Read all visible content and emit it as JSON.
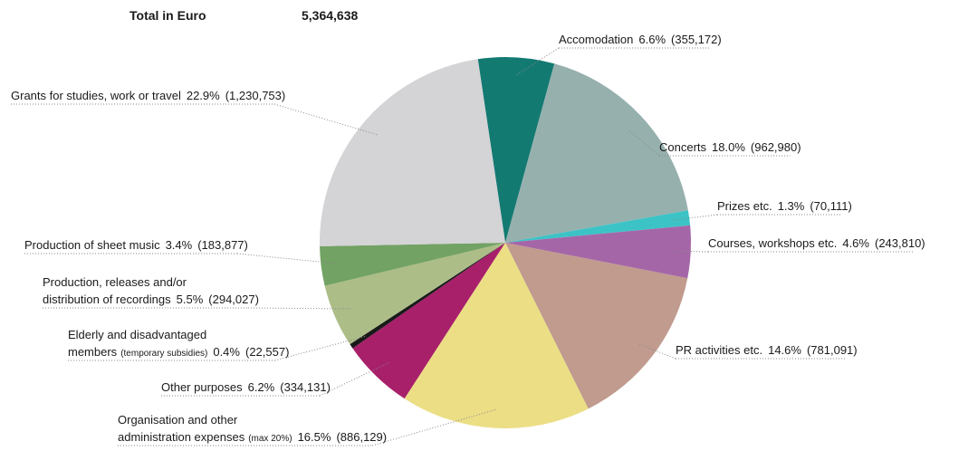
{
  "chart_data": {
    "type": "pie",
    "total_label": "Total in Euro",
    "total": "5,364,638",
    "categories": [
      [
        "Accomodation"
      ],
      [
        "Concerts"
      ],
      [
        "Prizes etc."
      ],
      [
        "Courses, workshops etc."
      ],
      [
        "PR activities etc."
      ],
      [
        "Organisation and other",
        "administration expenses"
      ],
      [
        "Other purposes"
      ],
      [
        "Elderly and disadvantaged",
        "members"
      ],
      [
        "Production, releases and/or",
        "distribution of recordings"
      ],
      [
        "Production of sheet music"
      ],
      [
        "Grants for studies, work or travel"
      ]
    ],
    "notes": [
      null,
      null,
      null,
      null,
      null,
      "(max 20%)",
      null,
      "(temporary subsidies)",
      null,
      null,
      null
    ],
    "values": [
      355172,
      962980,
      70111,
      243810,
      781091,
      886129,
      334131,
      22557,
      294027,
      183877,
      1230753
    ],
    "value_labels": [
      "(355,172)",
      "(962,980)",
      "(70,111)",
      "(243,810)",
      "(781,091)",
      "(886,129)",
      "(334,131)",
      "(22,557)",
      "(294,027)",
      "(183,877)",
      "(1,230,753)"
    ],
    "percents": [
      6.6,
      18.0,
      1.3,
      4.6,
      14.6,
      16.5,
      6.2,
      0.4,
      5.5,
      3.4,
      22.9
    ],
    "percent_labels": [
      "6.6%",
      "18.0%",
      "1.3%",
      "4.6%",
      "14.6%",
      "16.5%",
      "6.2%",
      "0.4%",
      "5.5%",
      "3.4%",
      "22.9%"
    ],
    "colors": [
      "#137a72",
      "#96b0ae",
      "#3cc3c6",
      "#a566a8",
      "#c09b8e",
      "#ecde85",
      "#a8206a",
      "#1a1a1a",
      "#adbd87",
      "#72a264",
      "#d4d3d6"
    ]
  }
}
